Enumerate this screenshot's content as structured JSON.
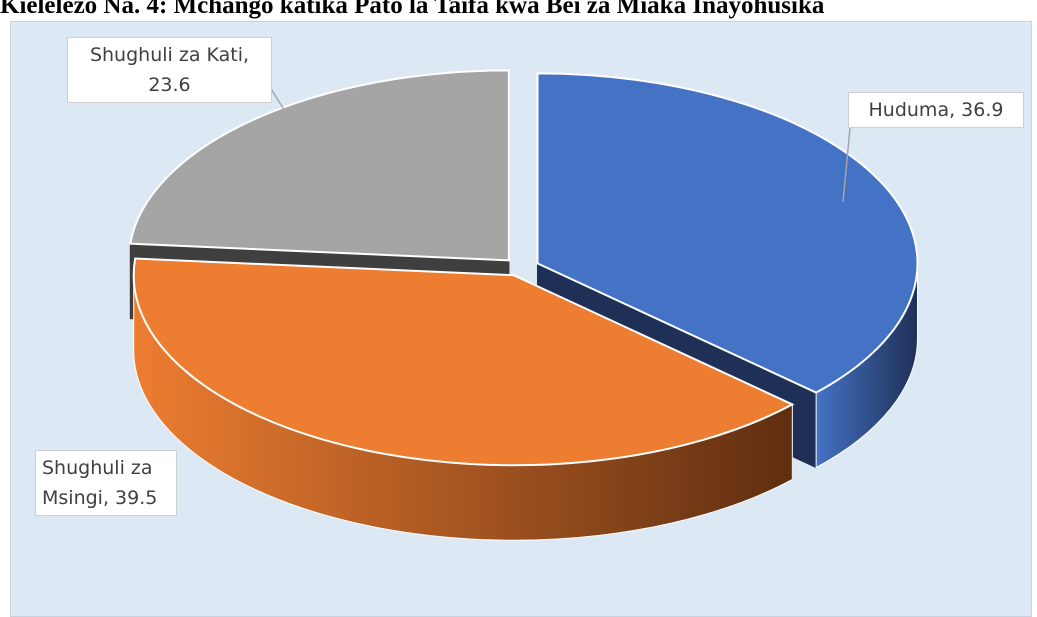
{
  "title": "Kielelezo Na. 4: Mchango katika Pato la Taifa kwa Bei za Miaka Inayohusika",
  "chart_data": {
    "type": "pie",
    "variant": "3d-exploded",
    "slices": [
      {
        "key": "huduma",
        "label_line1": "Huduma,",
        "label_line2": "36.9",
        "value": 36.9,
        "color": "#4472c4",
        "dark": "#1f3057"
      },
      {
        "key": "msingi",
        "label_line1": "Shughuli za",
        "label_line2": "Msingi, 39.5",
        "value": 39.5,
        "color": "#ed7d31",
        "dark": "#5f2e10"
      },
      {
        "key": "kati",
        "label_line1": "Shughuli za Kati,",
        "label_line2": "23.6",
        "value": 23.6,
        "color": "#a5a5a5",
        "dark": "#3f3f3f"
      }
    ],
    "background": "#dde8f5"
  }
}
